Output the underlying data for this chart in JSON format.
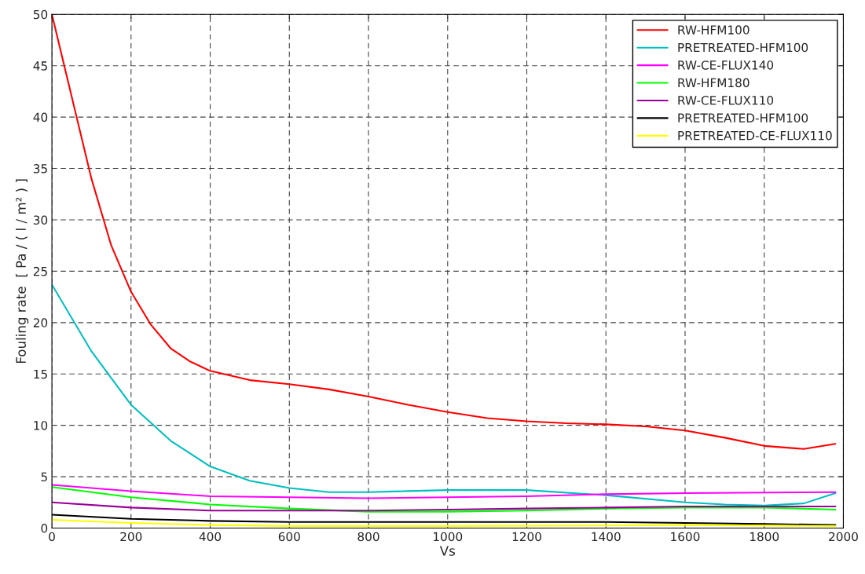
{
  "chart_data": {
    "type": "line",
    "xlabel": "Vs",
    "ylabel": "Fouling rate  [ Pa / ( l / m² ) ]",
    "xlim": [
      0,
      2000
    ],
    "xticks": [
      0,
      200,
      400,
      600,
      800,
      1000,
      1200,
      1400,
      1600,
      1800,
      2000
    ],
    "ylim": [
      0,
      50
    ],
    "yticks": [
      0,
      5,
      10,
      15,
      20,
      25,
      30,
      35,
      40,
      45,
      50
    ],
    "grid": true,
    "legend": "top right",
    "line_style": "solid",
    "marker": "none",
    "series": [
      {
        "name": "RW-HFM100",
        "color": "#ff0000",
        "x": [
          0,
          50,
          100,
          150,
          200,
          250,
          300,
          350,
          400,
          500,
          600,
          700,
          800,
          900,
          1000,
          1100,
          1200,
          1300,
          1400,
          1500,
          1600,
          1700,
          1800,
          1900,
          1980
        ],
        "values": [
          50,
          42,
          34,
          27.5,
          23,
          19.8,
          17.5,
          16.2,
          15.3,
          14.4,
          14,
          13.5,
          12.8,
          12,
          11.3,
          10.7,
          10.4,
          10.2,
          10.1,
          9.9,
          9.5,
          8.8,
          8,
          7.7,
          8.2
        ]
      },
      {
        "name": "PRETREATED-HFM100",
        "color": "#00bfbf",
        "x": [
          0,
          100,
          200,
          300,
          400,
          500,
          600,
          700,
          800,
          900,
          1000,
          1200,
          1400,
          1600,
          1700,
          1800,
          1900,
          1980
        ],
        "values": [
          23.7,
          17.2,
          12,
          8.5,
          6,
          4.6,
          3.9,
          3.5,
          3.5,
          3.6,
          3.7,
          3.7,
          3.2,
          2.5,
          2.3,
          2.2,
          2.4,
          3.4
        ]
      },
      {
        "name": "RW-CE-FLUX140",
        "color": "#ff00ff",
        "x": [
          0,
          200,
          400,
          600,
          800,
          1000,
          1200,
          1400,
          1600,
          1980
        ],
        "values": [
          4.2,
          3.6,
          3.1,
          3.0,
          2.9,
          3.0,
          3.1,
          3.3,
          3.4,
          3.5
        ]
      },
      {
        "name": "RW-HFM180",
        "color": "#00ff00",
        "x": [
          0,
          200,
          400,
          600,
          800,
          1000,
          1200,
          1400,
          1600,
          1800,
          1980
        ],
        "values": [
          4.0,
          3.0,
          2.3,
          1.9,
          1.6,
          1.6,
          1.7,
          1.9,
          2.0,
          2.0,
          1.8
        ]
      },
      {
        "name": "RW-CE-FLUX110",
        "color": "#990099",
        "x": [
          0,
          200,
          400,
          600,
          800,
          1000,
          1200,
          1400,
          1600,
          1980
        ],
        "values": [
          2.5,
          2.0,
          1.7,
          1.7,
          1.7,
          1.8,
          1.9,
          2.0,
          2.1,
          2.1
        ]
      },
      {
        "name": "PRETREATED-HFM100",
        "color": "#000000",
        "x": [
          0,
          200,
          400,
          600,
          800,
          1000,
          1400,
          1600,
          1800,
          1980
        ],
        "values": [
          1.3,
          0.9,
          0.7,
          0.6,
          0.6,
          0.6,
          0.6,
          0.5,
          0.4,
          0.3
        ]
      },
      {
        "name": "PRETREATED-CE-FLUX110",
        "color": "#ffff00",
        "x": [
          0,
          200,
          400,
          600,
          800,
          1000,
          1400,
          1600,
          1980
        ],
        "values": [
          0.8,
          0.5,
          0.3,
          0.2,
          0.2,
          0.2,
          0.25,
          0.3,
          0.2
        ]
      }
    ]
  }
}
